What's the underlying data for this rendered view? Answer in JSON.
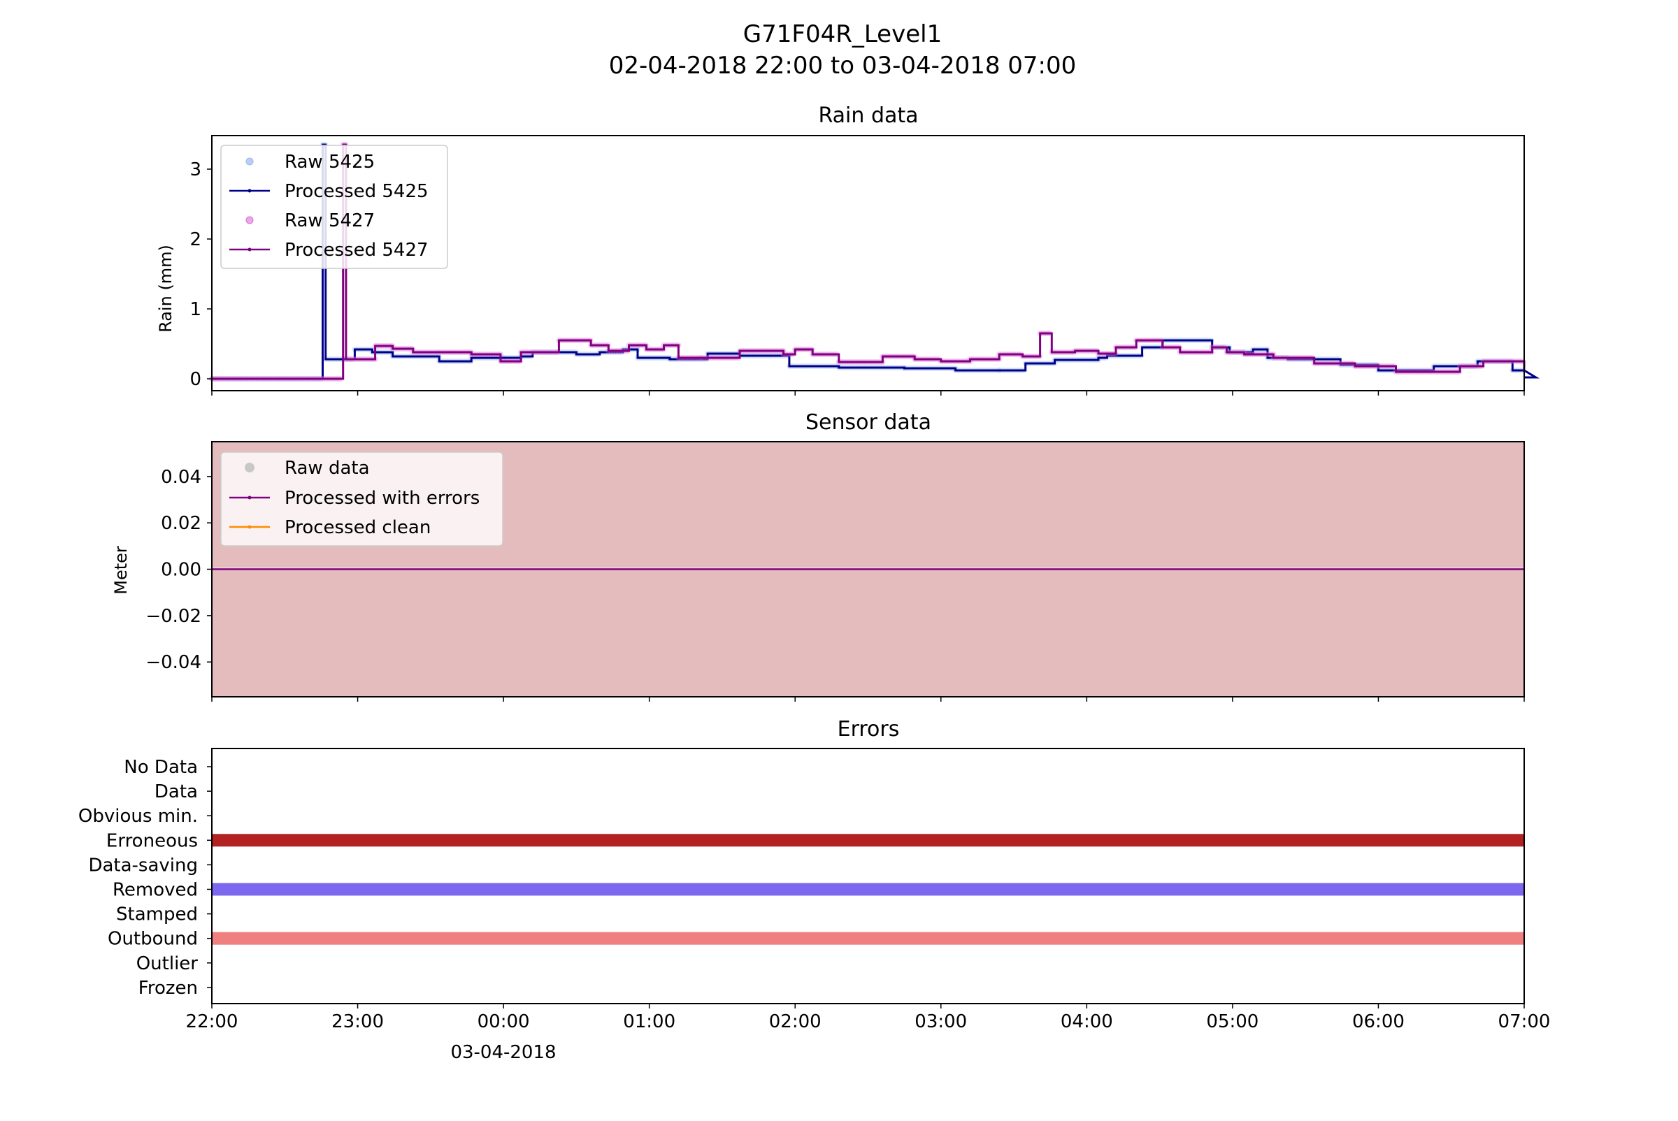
{
  "figure": {
    "title": "G71F04R_Level1",
    "subtitle": "02-04-2018 22:00 to 03-04-2018 07:00"
  },
  "x_axis": {
    "ticks": [
      "22:00",
      "23:00",
      "00:00",
      "01:00",
      "02:00",
      "03:00",
      "04:00",
      "05:00",
      "06:00",
      "07:00"
    ],
    "date_label": "03-04-2018",
    "range_hours": [
      0,
      9
    ]
  },
  "colors": {
    "raw_5425": "#9db9ec",
    "processed_5425": "#00008b",
    "raw_5427": "#da70d6",
    "processed_5427": "#800080",
    "sensor_bg": "#e5bcbd",
    "processed_clean": "#ff8c00",
    "raw_data": "#c8c8c8",
    "erroneous": "#b22222",
    "removed": "#7b68ee",
    "outbound": "#f08080"
  },
  "chart_data": [
    {
      "type": "line",
      "title": "Rain data",
      "ylabel": "Rain (mm)",
      "ylim": [
        -0.17,
        3.48
      ],
      "yticks": [
        "0",
        "1",
        "2",
        "3"
      ],
      "legend": {
        "placement": "upper-left",
        "entries": [
          "Raw 5425",
          "Processed 5425",
          "Raw 5427",
          "Processed 5427"
        ]
      },
      "series": [
        {
          "name": "Processed 5425",
          "steps": [
            [
              0,
              0
            ],
            [
              0.76,
              3.35
            ],
            [
              0.78,
              0.28
            ],
            [
              0.98,
              0.42
            ],
            [
              1.1,
              0.38
            ],
            [
              1.24,
              0.32
            ],
            [
              1.56,
              0.25
            ],
            [
              1.78,
              0.3
            ],
            [
              2.0,
              0.3
            ],
            [
              2.12,
              0.32
            ],
            [
              2.2,
              0.38
            ],
            [
              2.5,
              0.35
            ],
            [
              2.66,
              0.38
            ],
            [
              2.82,
              0.42
            ],
            [
              2.92,
              0.3
            ],
            [
              3.14,
              0.28
            ],
            [
              3.4,
              0.36
            ],
            [
              3.62,
              0.33
            ],
            [
              3.96,
              0.18
            ],
            [
              4.3,
              0.16
            ],
            [
              4.75,
              0.15
            ],
            [
              5.1,
              0.12
            ],
            [
              5.4,
              0.12
            ],
            [
              5.58,
              0.22
            ],
            [
              5.78,
              0.27
            ],
            [
              6.08,
              0.3
            ],
            [
              6.14,
              0.33
            ],
            [
              6.38,
              0.45
            ],
            [
              6.52,
              0.55
            ],
            [
              6.86,
              0.45
            ],
            [
              6.98,
              0.38
            ],
            [
              7.14,
              0.42
            ],
            [
              7.24,
              0.3
            ],
            [
              7.38,
              0.28
            ],
            [
              7.74,
              0.2
            ],
            [
              8.0,
              0.12
            ],
            [
              8.38,
              0.18
            ],
            [
              8.68,
              0.25
            ],
            [
              8.92,
              0.12
            ],
            [
              9.0,
              0.12
            ],
            [
              9.08,
              0.02
            ],
            [
              9.0,
              0.02
            ]
          ]
        },
        {
          "name": "Processed 5427",
          "steps": [
            [
              0,
              0
            ],
            [
              0.9,
              3.35
            ],
            [
              0.92,
              0.28
            ],
            [
              1.12,
              0.47
            ],
            [
              1.24,
              0.43
            ],
            [
              1.38,
              0.38
            ],
            [
              1.56,
              0.38
            ],
            [
              1.78,
              0.35
            ],
            [
              1.98,
              0.25
            ],
            [
              2.12,
              0.38
            ],
            [
              2.38,
              0.55
            ],
            [
              2.6,
              0.48
            ],
            [
              2.72,
              0.4
            ],
            [
              2.86,
              0.48
            ],
            [
              2.98,
              0.42
            ],
            [
              3.1,
              0.48
            ],
            [
              3.2,
              0.3
            ],
            [
              3.36,
              0.3
            ],
            [
              3.62,
              0.4
            ],
            [
              3.92,
              0.35
            ],
            [
              4.0,
              0.42
            ],
            [
              4.12,
              0.35
            ],
            [
              4.3,
              0.24
            ],
            [
              4.6,
              0.32
            ],
            [
              4.82,
              0.28
            ],
            [
              5.0,
              0.25
            ],
            [
              5.2,
              0.28
            ],
            [
              5.4,
              0.35
            ],
            [
              5.56,
              0.32
            ],
            [
              5.68,
              0.65
            ],
            [
              5.76,
              0.38
            ],
            [
              5.92,
              0.4
            ],
            [
              6.08,
              0.36
            ],
            [
              6.2,
              0.45
            ],
            [
              6.34,
              0.55
            ],
            [
              6.52,
              0.45
            ],
            [
              6.64,
              0.38
            ],
            [
              6.86,
              0.45
            ],
            [
              6.96,
              0.38
            ],
            [
              7.08,
              0.35
            ],
            [
              7.28,
              0.3
            ],
            [
              7.56,
              0.22
            ],
            [
              7.84,
              0.18
            ],
            [
              8.12,
              0.1
            ],
            [
              8.56,
              0.18
            ],
            [
              8.72,
              0.25
            ],
            [
              9.0,
              0.1
            ]
          ]
        }
      ]
    },
    {
      "type": "line",
      "title": "Sensor data",
      "ylabel": "Meter",
      "ylim": [
        -0.055,
        0.055
      ],
      "yticks": [
        "0.04",
        "0.02",
        "0.00",
        "−0.02",
        "−0.04"
      ],
      "legend": {
        "placement": "upper-left",
        "entries": [
          "Raw data",
          "Processed with errors",
          "Processed clean"
        ]
      },
      "series": [
        {
          "name": "Processed with errors",
          "constant": 0.0
        }
      ]
    },
    {
      "type": "bar",
      "title": "Errors",
      "categories": [
        "No Data",
        "Data",
        "Obvious min.",
        "Erroneous",
        "Data-saving",
        "Removed",
        "Stamped",
        "Outbound",
        "Outlier",
        "Frozen"
      ],
      "active": [
        {
          "category": "Erroneous",
          "x_hours": [
            0,
            9
          ]
        },
        {
          "category": "Removed",
          "x_hours": [
            0,
            9
          ]
        },
        {
          "category": "Outbound",
          "x_hours": [
            0,
            9
          ]
        }
      ]
    }
  ]
}
